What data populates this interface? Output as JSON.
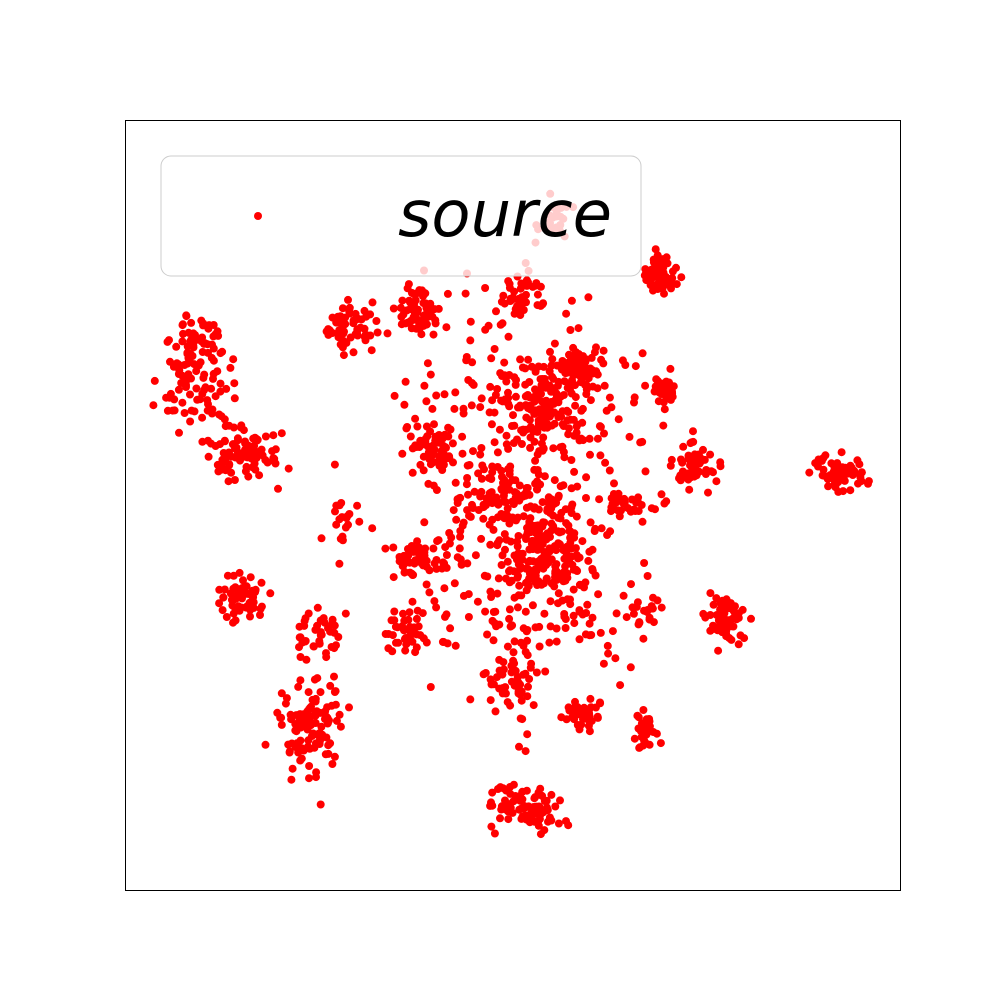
{
  "chart_data": {
    "type": "scatter",
    "title": "",
    "xlabel": "",
    "ylabel": "",
    "xlim": [
      0,
      100
    ],
    "ylim": [
      0,
      100
    ],
    "ticks": "none",
    "grid": false,
    "legend": {
      "placement": "top-left",
      "entries": [
        "source"
      ]
    },
    "series": [
      {
        "name": "source",
        "color": "#ff0000",
        "clusters": [
          {
            "x": 29.0,
            "y": 73.0,
            "sx": 1.8,
            "sy": 1.8,
            "n": 60
          },
          {
            "x": 38.0,
            "y": 75.5,
            "sx": 1.6,
            "sy": 1.6,
            "n": 70
          },
          {
            "x": 39.5,
            "y": 57.5,
            "sx": 1.8,
            "sy": 1.8,
            "n": 70
          },
          {
            "x": 37.0,
            "y": 42.5,
            "sx": 1.6,
            "sy": 1.4,
            "n": 45
          },
          {
            "x": 36.5,
            "y": 33.5,
            "sx": 1.6,
            "sy": 1.6,
            "n": 45
          },
          {
            "x": 54.0,
            "y": 62.5,
            "sx": 2.8,
            "sy": 3.5,
            "n": 150
          },
          {
            "x": 54.5,
            "y": 43.5,
            "sx": 3.2,
            "sy": 4.5,
            "n": 220
          },
          {
            "x": 49.0,
            "y": 51.0,
            "sx": 4.5,
            "sy": 5.0,
            "n": 150
          },
          {
            "x": 50.0,
            "y": 28.0,
            "sx": 1.8,
            "sy": 4.0,
            "n": 70
          },
          {
            "x": 52.0,
            "y": 10.5,
            "sx": 2.5,
            "sy": 1.5,
            "n": 90
          },
          {
            "x": 51.0,
            "y": 77.0,
            "sx": 1.2,
            "sy": 1.3,
            "n": 45
          },
          {
            "x": 59.0,
            "y": 68.0,
            "sx": 1.2,
            "sy": 1.2,
            "n": 70
          },
          {
            "x": 69.0,
            "y": 80.0,
            "sx": 1.2,
            "sy": 1.5,
            "n": 65
          },
          {
            "x": 69.5,
            "y": 65.0,
            "sx": 1.0,
            "sy": 0.9,
            "n": 35
          },
          {
            "x": 73.5,
            "y": 55.0,
            "sx": 1.2,
            "sy": 1.6,
            "n": 55
          },
          {
            "x": 66.0,
            "y": 50.0,
            "sx": 2.0,
            "sy": 1.0,
            "n": 35
          },
          {
            "x": 77.5,
            "y": 35.0,
            "sx": 1.3,
            "sy": 1.6,
            "n": 65
          },
          {
            "x": 67.0,
            "y": 36.5,
            "sx": 1.2,
            "sy": 1.5,
            "n": 20
          },
          {
            "x": 59.0,
            "y": 23.0,
            "sx": 1.2,
            "sy": 1.0,
            "n": 35
          },
          {
            "x": 67.0,
            "y": 20.0,
            "sx": 0.9,
            "sy": 1.2,
            "n": 30
          },
          {
            "x": 93.0,
            "y": 54.0,
            "sx": 1.2,
            "sy": 1.0,
            "n": 50
          },
          {
            "x": 90.0,
            "y": 55.0,
            "sx": 0.8,
            "sy": 0.8,
            "n": 10
          },
          {
            "x": 9.0,
            "y": 71.5,
            "sx": 1.6,
            "sy": 1.6,
            "n": 45
          },
          {
            "x": 9.0,
            "y": 65.5,
            "sx": 2.5,
            "sy": 3.0,
            "n": 70
          },
          {
            "x": 15.0,
            "y": 57.0,
            "sx": 2.2,
            "sy": 1.8,
            "n": 90
          },
          {
            "x": 15.0,
            "y": 37.5,
            "sx": 1.5,
            "sy": 1.5,
            "n": 60
          },
          {
            "x": 25.0,
            "y": 34.0,
            "sx": 1.8,
            "sy": 2.0,
            "n": 40
          },
          {
            "x": 24.0,
            "y": 21.0,
            "sx": 2.2,
            "sy": 3.0,
            "n": 110
          },
          {
            "x": 28.0,
            "y": 47.0,
            "sx": 1.5,
            "sy": 2.0,
            "n": 20
          },
          {
            "x": 45.0,
            "y": 41.0,
            "sx": 5.0,
            "sy": 7.0,
            "n": 60
          },
          {
            "x": 47.0,
            "y": 65.0,
            "sx": 6.0,
            "sy": 3.0,
            "n": 40
          },
          {
            "x": 60.0,
            "y": 62.0,
            "sx": 6.0,
            "sy": 4.0,
            "n": 45
          },
          {
            "x": 55.0,
            "y": 88.0,
            "sx": 1.2,
            "sy": 1.5,
            "n": 30
          },
          {
            "x": 48.0,
            "y": 72.0,
            "sx": 10.0,
            "sy": 5.0,
            "n": 30
          },
          {
            "x": 60.0,
            "y": 35.0,
            "sx": 5.0,
            "sy": 5.0,
            "n": 30
          }
        ]
      }
    ]
  }
}
